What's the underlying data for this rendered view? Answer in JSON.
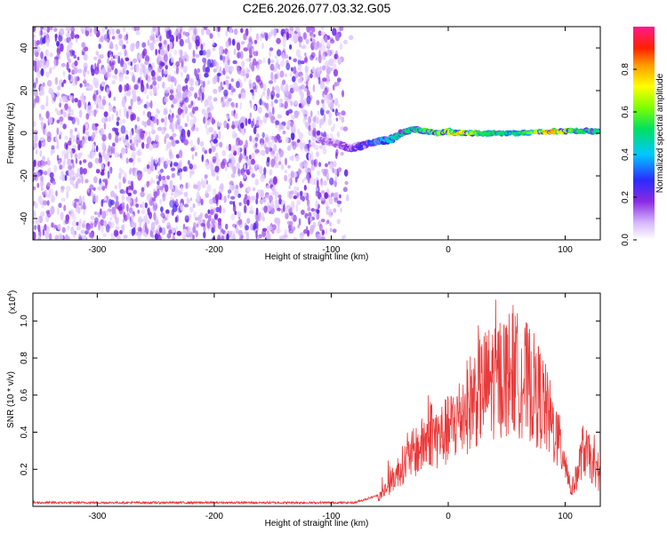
{
  "title": "C2E6.2026.077.03.32.G05",
  "chart_data": [
    {
      "type": "heatmap",
      "name": "spectrogram",
      "xlabel": "Height of straight line (km)",
      "ylabel": "Frequency (Hz)",
      "xlim": [
        -355,
        130
      ],
      "ylim": [
        -50,
        50
      ],
      "xticks": [
        -300,
        -200,
        -100,
        0,
        100
      ],
      "yticks": [
        -40,
        -20,
        0,
        20,
        40
      ],
      "noise_region": {
        "x": [
          -355,
          -82
        ],
        "y": [
          -50,
          50
        ],
        "amplitude": [
          0.05,
          0.25
        ]
      },
      "signal_track": {
        "x": [
          -110,
          -95,
          -85,
          -75,
          -62,
          -50,
          -40,
          -30,
          -20,
          -10,
          0,
          10,
          30,
          60,
          90,
          110,
          130
        ],
        "freq": [
          -3,
          -5,
          -7,
          -6,
          -4,
          -3,
          0,
          2,
          1,
          0,
          1,
          0,
          0,
          0,
          1,
          1,
          1
        ],
        "amplitude": [
          0.15,
          0.15,
          0.2,
          0.25,
          0.35,
          0.45,
          0.5,
          0.55,
          0.6,
          0.65,
          0.7,
          0.8,
          0.55,
          0.5,
          0.85,
          0.55,
          0.5
        ]
      },
      "colorbar": {
        "label": "Normalized spectral amplitude",
        "range": [
          0,
          1
        ],
        "ticks": [
          "0.0",
          "0.2",
          "0.4",
          "0.6",
          "0.8"
        ],
        "tick_values": [
          0.0,
          0.2,
          0.4,
          0.6,
          0.8
        ]
      }
    },
    {
      "type": "line",
      "name": "snr",
      "xlabel": "Height of straight line (km)",
      "ylabel": "SNR (10 * v/v)",
      "scale_label": "(x10",
      "scale_exponent": "4",
      "scale_close": ")",
      "xlim": [
        -355,
        130
      ],
      "ylim": [
        0,
        1.15
      ],
      "xticks": [
        -300,
        -200,
        -100,
        0,
        100
      ],
      "yticks": [
        "0.2",
        "0.4",
        "0.6",
        "0.8",
        "1.0"
      ],
      "ytick_values": [
        0.2,
        0.4,
        0.6,
        0.8,
        1.0
      ],
      "color": "#e83a3a",
      "envelope": {
        "x": [
          -355,
          -80,
          -60,
          -50,
          -40,
          -30,
          -20,
          -15,
          -10,
          0,
          10,
          20,
          30,
          40,
          50,
          55,
          60,
          70,
          80,
          90,
          100,
          105,
          110,
          115,
          120,
          130
        ],
        "y": [
          0.02,
          0.02,
          0.06,
          0.18,
          0.32,
          0.42,
          0.5,
          0.6,
          0.55,
          0.6,
          0.72,
          0.85,
          0.95,
          1.02,
          1.05,
          1.1,
          1.04,
          0.98,
          0.85,
          0.62,
          0.38,
          0.12,
          0.25,
          0.45,
          0.4,
          0.2
        ]
      }
    }
  ]
}
